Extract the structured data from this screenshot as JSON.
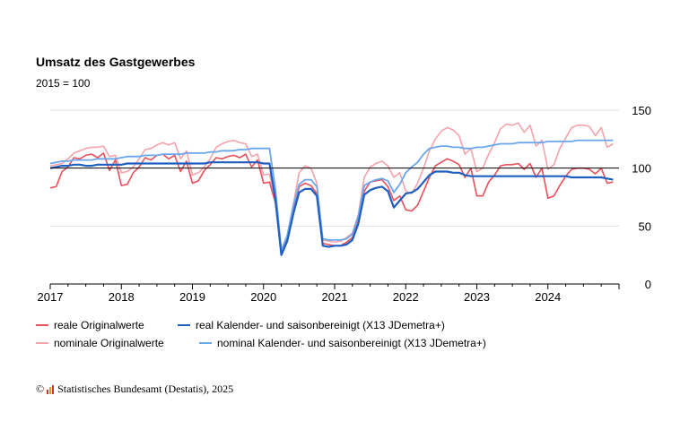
{
  "colors": {
    "real_original": "#e8505b",
    "real_adjusted": "#1f5fbf",
    "nominal_original": "#f4a3ab",
    "nominal_adjusted": "#6aa6ee",
    "baseline": "#000000",
    "grid": "#e2e2e2"
  },
  "chart_data": {
    "type": "line",
    "title": "Umsatz des Gastgewerbes",
    "subtitle": "2015 = 100",
    "x_start": "2017-01",
    "x_end": "2024-12",
    "xticks": [
      "2017",
      "2018",
      "2019",
      "2020",
      "2021",
      "2022",
      "2023",
      "2024"
    ],
    "yticks": [
      0,
      50,
      100,
      150
    ],
    "ylim": [
      0,
      150
    ],
    "reference_line": 100,
    "y_axis_side": "right",
    "grid": true,
    "legend_position": "bottom",
    "series": [
      {
        "name": "reale Originalwerte",
        "values": [
          83,
          84,
          97,
          101,
          109,
          108,
          111,
          112,
          109,
          113,
          98,
          107,
          85,
          86,
          96,
          101,
          109,
          107,
          111,
          112,
          108,
          111,
          97,
          106,
          87,
          89,
          98,
          103,
          109,
          108,
          110,
          111,
          109,
          112,
          101,
          107,
          87,
          88,
          70,
          27,
          40,
          62,
          84,
          87,
          85,
          78,
          35,
          34,
          33,
          33,
          36,
          40,
          55,
          80,
          88,
          89,
          90,
          84,
          72,
          76,
          64,
          63,
          68,
          80,
          92,
          102,
          105,
          108,
          106,
          103,
          92,
          100,
          76,
          76,
          88,
          94,
          102,
          103,
          103,
          104,
          99,
          104,
          92,
          100,
          74,
          76,
          85,
          93,
          99,
          100,
          100,
          99,
          95,
          100,
          87,
          88
        ]
      },
      {
        "name": "real Kalender- und saisonbereinigt (X13 JDemetra+)",
        "values": [
          100,
          101,
          102,
          102,
          103,
          103,
          102,
          102,
          103,
          103,
          103,
          103,
          103,
          104,
          104,
          104,
          104,
          104,
          104,
          104,
          104,
          104,
          104,
          104,
          104,
          104,
          104,
          105,
          105,
          105,
          105,
          105,
          105,
          105,
          105,
          105,
          104,
          104,
          73,
          25,
          37,
          60,
          79,
          82,
          82,
          76,
          33,
          32,
          33,
          33,
          34,
          38,
          52,
          77,
          81,
          83,
          84,
          80,
          66,
          72,
          78,
          79,
          82,
          88,
          94,
          97,
          97,
          97,
          96,
          96,
          94,
          93,
          93,
          93,
          93,
          93,
          93,
          93,
          93,
          93,
          93,
          93,
          93,
          93,
          93,
          93,
          93,
          93,
          92,
          92,
          92,
          92,
          92,
          92,
          91,
          90
        ]
      },
      {
        "name": "nominale Originalwerte",
        "values": [
          102,
          103,
          104,
          108,
          113,
          115,
          117,
          118,
          118,
          119,
          110,
          111,
          96,
          97,
          101,
          108,
          116,
          117,
          120,
          122,
          120,
          122,
          108,
          115,
          94,
          96,
          101,
          108,
          118,
          121,
          123,
          124,
          122,
          121,
          110,
          112,
          94,
          95,
          72,
          27,
          42,
          68,
          96,
          102,
          100,
          87,
          38,
          37,
          36,
          37,
          40,
          44,
          60,
          92,
          101,
          104,
          106,
          102,
          92,
          96,
          80,
          78,
          87,
          100,
          115,
          125,
          132,
          135,
          133,
          128,
          112,
          117,
          97,
          100,
          112,
          122,
          134,
          138,
          137,
          139,
          131,
          137,
          119,
          124,
          99,
          103,
          117,
          126,
          135,
          137,
          137,
          136,
          128,
          135,
          118,
          121
        ]
      },
      {
        "name": "nominal Kalender- und saisonbereinigt (X13 JDemetra+)",
        "values": [
          104,
          105,
          106,
          106,
          107,
          107,
          107,
          107,
          108,
          108,
          108,
          108,
          109,
          110,
          110,
          110,
          111,
          111,
          111,
          112,
          112,
          112,
          112,
          113,
          113,
          113,
          113,
          114,
          114,
          115,
          115,
          115,
          116,
          116,
          117,
          117,
          117,
          117,
          82,
          29,
          42,
          67,
          86,
          90,
          90,
          84,
          39,
          38,
          38,
          38,
          39,
          43,
          58,
          85,
          88,
          90,
          91,
          89,
          79,
          86,
          96,
          101,
          105,
          112,
          117,
          118,
          119,
          119,
          118,
          118,
          117,
          117,
          118,
          118,
          119,
          120,
          121,
          121,
          121,
          122,
          122,
          122,
          122,
          122,
          123,
          123,
          123,
          123,
          123,
          124,
          124,
          124,
          124,
          124,
          124,
          124
        ]
      }
    ]
  },
  "source": {
    "copyright": "©",
    "text": "Statistisches Bundesamt (Destatis), 2025"
  }
}
